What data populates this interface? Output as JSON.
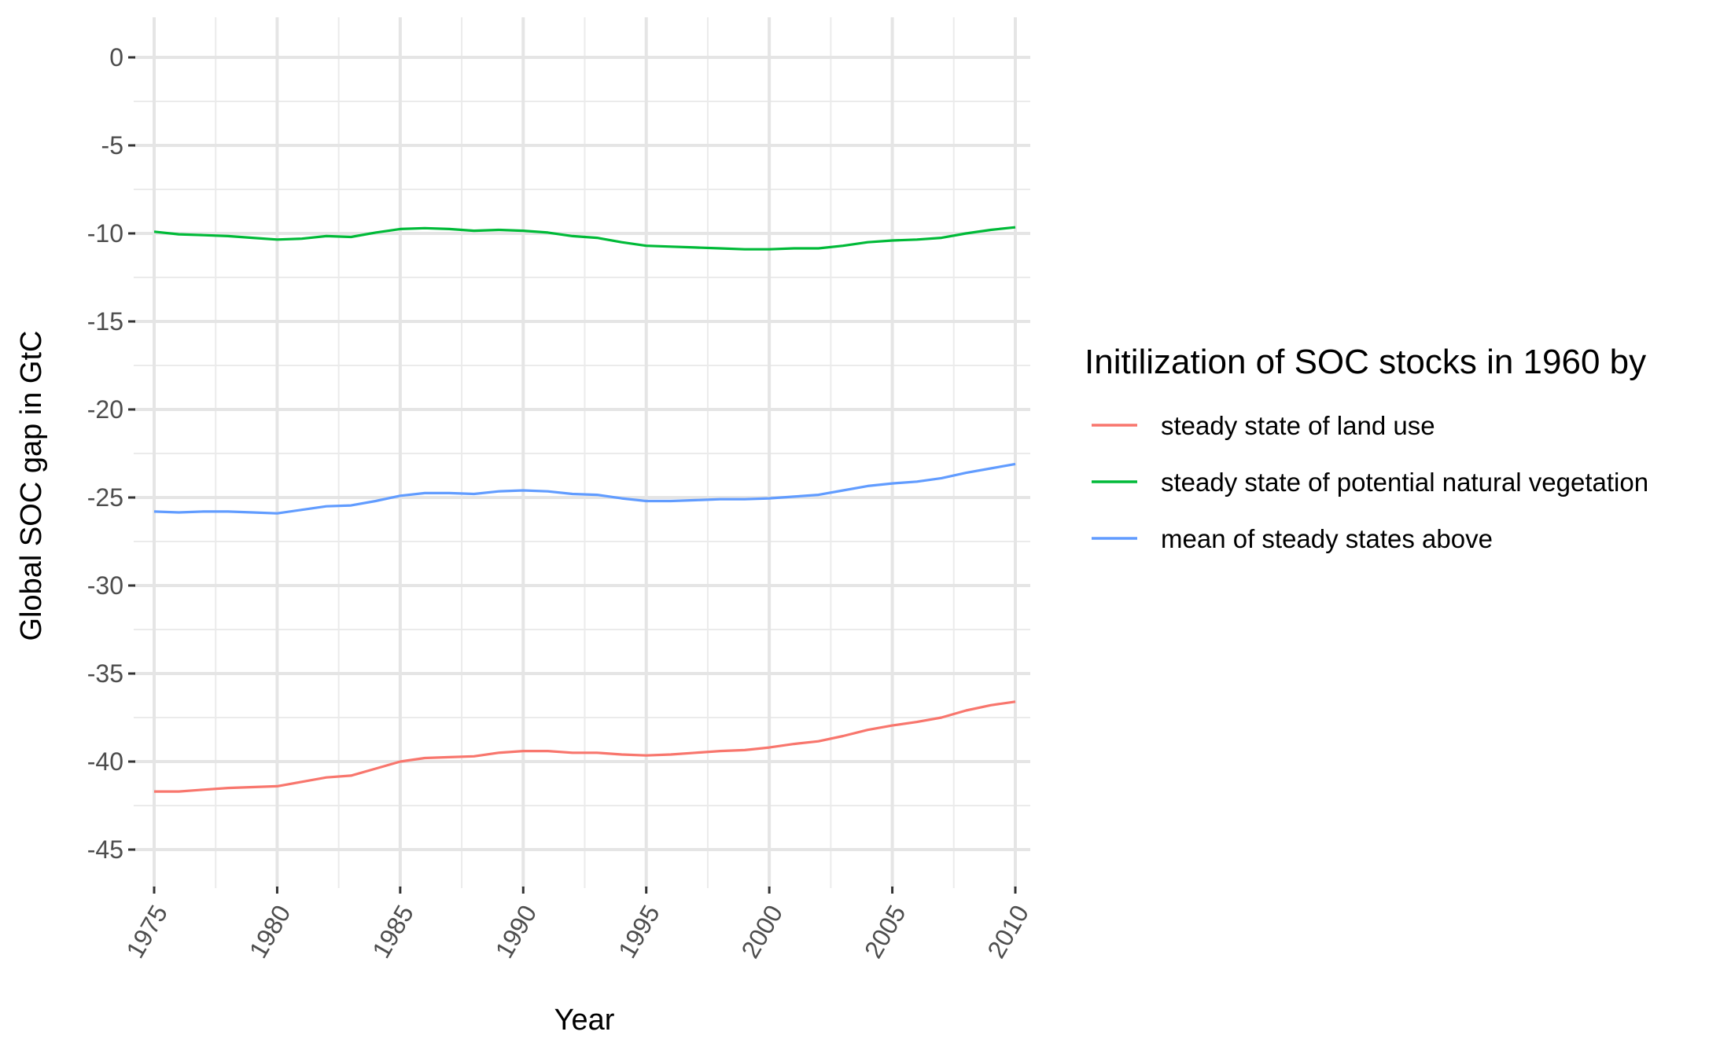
{
  "chart_data": {
    "type": "line",
    "xlabel": "Year",
    "ylabel": "Global SOC gap in GtC",
    "xlim": [
      1975,
      2010
    ],
    "ylim": [
      -45,
      0
    ],
    "x_ticks": [
      1975,
      1980,
      1985,
      1990,
      1995,
      2000,
      2005,
      2010
    ],
    "y_ticks": [
      0,
      -5,
      -10,
      -15,
      -20,
      -25,
      -30,
      -35,
      -40,
      -45
    ],
    "x_tick_labels": [
      "1975",
      "1980",
      "1985",
      "1990",
      "1995",
      "2000",
      "2005",
      "2010"
    ],
    "y_tick_labels": [
      "0",
      "-5",
      "-10",
      "-15",
      "-20",
      "-25",
      "-30",
      "-35",
      "-40",
      "-45"
    ],
    "grid": true,
    "legend": {
      "title": "Initilization of SOC stocks in 1960 by",
      "position": "right"
    },
    "x": [
      1975,
      1976,
      1977,
      1978,
      1979,
      1980,
      1981,
      1982,
      1983,
      1984,
      1985,
      1986,
      1987,
      1988,
      1989,
      1990,
      1991,
      1992,
      1993,
      1994,
      1995,
      1996,
      1997,
      1998,
      1999,
      2000,
      2001,
      2002,
      2003,
      2004,
      2005,
      2006,
      2007,
      2008,
      2009,
      2010
    ],
    "series": [
      {
        "name": "steady state of land use",
        "color": "#F8766D",
        "values": [
          -41.7,
          -41.7,
          -41.6,
          -41.5,
          -41.45,
          -41.4,
          -41.15,
          -40.9,
          -40.8,
          -40.4,
          -40.0,
          -39.8,
          -39.75,
          -39.7,
          -39.5,
          -39.4,
          -39.4,
          -39.5,
          -39.5,
          -39.6,
          -39.65,
          -39.6,
          -39.5,
          -39.4,
          -39.35,
          -39.2,
          -39.0,
          -38.85,
          -38.55,
          -38.2,
          -37.95,
          -37.75,
          -37.5,
          -37.1,
          -36.8,
          -36.6
        ]
      },
      {
        "name": "steady state of potential natural vegetation",
        "color": "#00BA38",
        "values": [
          -9.9,
          -10.05,
          -10.1,
          -10.15,
          -10.25,
          -10.35,
          -10.3,
          -10.15,
          -10.2,
          -9.95,
          -9.75,
          -9.7,
          -9.75,
          -9.85,
          -9.8,
          -9.85,
          -9.95,
          -10.15,
          -10.25,
          -10.5,
          -10.7,
          -10.75,
          -10.8,
          -10.85,
          -10.9,
          -10.9,
          -10.85,
          -10.85,
          -10.7,
          -10.5,
          -10.4,
          -10.35,
          -10.25,
          -10.0,
          -9.8,
          -9.65
        ]
      },
      {
        "name": "mean of steady states above",
        "color": "#619CFF",
        "values": [
          -25.8,
          -25.85,
          -25.8,
          -25.8,
          -25.85,
          -25.9,
          -25.7,
          -25.5,
          -25.45,
          -25.2,
          -24.9,
          -24.75,
          -24.75,
          -24.8,
          -24.65,
          -24.6,
          -24.65,
          -24.8,
          -24.85,
          -25.05,
          -25.2,
          -25.2,
          -25.15,
          -25.1,
          -25.1,
          -25.05,
          -24.95,
          -24.85,
          -24.6,
          -24.35,
          -24.2,
          -24.1,
          -23.9,
          -23.6,
          -23.35,
          -23.1
        ]
      }
    ]
  }
}
